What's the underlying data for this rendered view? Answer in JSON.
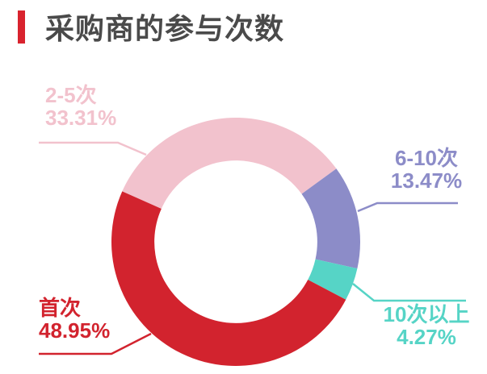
{
  "header": {
    "title": "采购商的参与次数",
    "accent_color": "#d9232e",
    "title_color": "#4a4a4a"
  },
  "chart_data": {
    "type": "pie",
    "title": "采购商的参与次数",
    "donut": true,
    "inner_radius_ratio": 0.655,
    "start_angle": 156,
    "direction": "clockwise",
    "legend_position": "none",
    "background": "#ffffff",
    "segments": [
      {
        "label": "首次",
        "value": 48.95,
        "display": "48.95%",
        "color": "#d2232e",
        "label_position": "bottom-left"
      },
      {
        "label": "2-5次",
        "value": 33.31,
        "display": "33.31%",
        "color": "#f2c2cd",
        "label_position": "top-left"
      },
      {
        "label": "6-10次",
        "value": 13.47,
        "display": "13.47%",
        "color": "#8c8cc8",
        "label_position": "right"
      },
      {
        "label": "10次以上",
        "value": 4.27,
        "display": "4.27%",
        "color": "#56d4c6",
        "label_position": "bottom-right"
      }
    ],
    "draw_sequence": [
      1,
      2,
      3,
      0
    ]
  }
}
